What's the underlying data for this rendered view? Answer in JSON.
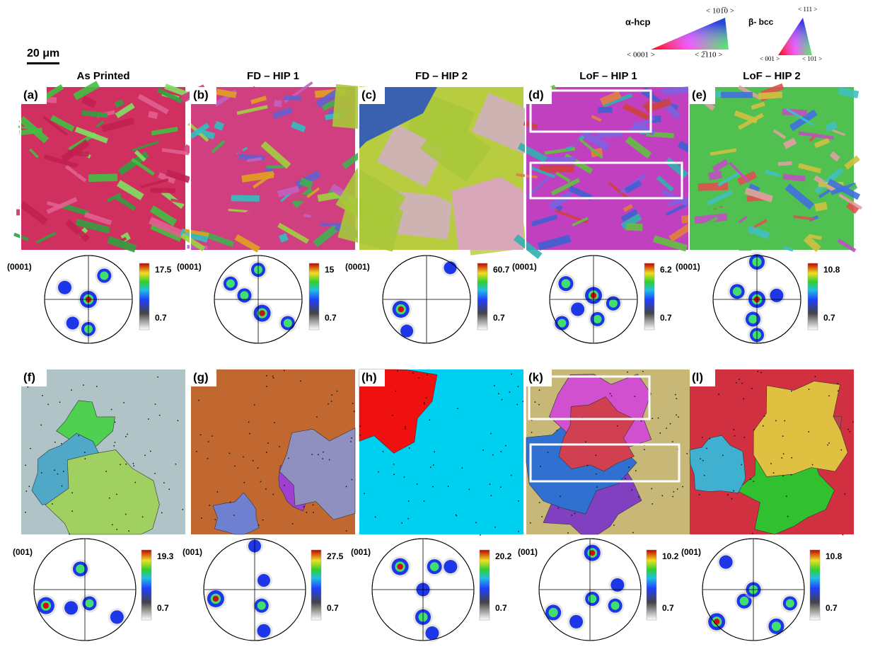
{
  "legend": {
    "alpha_title": "α-hcp",
    "alpha_top": "< 101̅0 >",
    "alpha_left": "< 0001 >",
    "alpha_right": "< 2̅110 >",
    "beta_title": "β- bcc",
    "beta_top": "< 111 >",
    "beta_left": "< 001 >",
    "beta_right": "< 101 >"
  },
  "scale_bar": "20 μm",
  "columns": [
    {
      "title": "As Printed",
      "top_panel": "(a)",
      "top_pole": "(0001)",
      "top_max": 17.5,
      "top_min": 0.7,
      "bottom_panel": "(f)",
      "bottom_pole": "(001)",
      "bottom_max": 19.3,
      "bottom_min": 0.7
    },
    {
      "title": "FD – HIP 1",
      "top_panel": "(b)",
      "top_pole": "(0001)",
      "top_max": 15,
      "top_min": 0.7,
      "bottom_panel": "(g)",
      "bottom_pole": "(001)",
      "bottom_max": 27.5,
      "bottom_min": 0.7
    },
    {
      "title": "FD – HIP 2",
      "top_panel": "(c)",
      "top_pole": "(0001)",
      "top_max": 60.7,
      "top_min": 0.7,
      "bottom_panel": "(h)",
      "bottom_pole": "(001)",
      "bottom_max": 20.2,
      "bottom_min": 0.7
    },
    {
      "title": "LoF – HIP 1",
      "top_panel": "(d)",
      "top_pole": "(0001)",
      "top_max": 6.2,
      "top_min": 0.7,
      "bottom_panel": "(k)",
      "bottom_pole": "(001)",
      "bottom_max": 10.2,
      "bottom_min": 0.7
    },
    {
      "title": "LoF – HIP 2",
      "top_panel": "(e)",
      "top_pole": "(0001)",
      "top_max": 10.8,
      "top_min": 0.7,
      "bottom_panel": "(l)",
      "bottom_pole": "(001)",
      "bottom_max": 10.8,
      "bottom_min": 0.7
    }
  ]
}
